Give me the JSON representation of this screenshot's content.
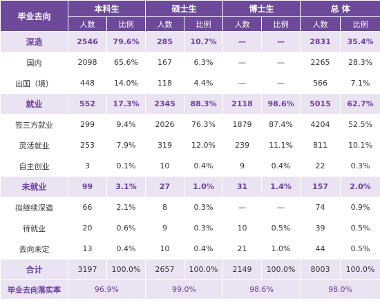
{
  "header": {
    "corner": "毕业去向",
    "groups": [
      "本科生",
      "硕士生",
      "博士生",
      "总 体"
    ],
    "sub": [
      "人数",
      "比例"
    ]
  },
  "rows": [
    {
      "label": "深造",
      "type": "sec",
      "cells": [
        "2546",
        "79.6%",
        "285",
        "10.7%",
        "—",
        "—",
        "2831",
        "35.4%"
      ]
    },
    {
      "label": "国内",
      "type": "sub",
      "cells": [
        "2098",
        "65.6%",
        "167",
        "6.3%",
        "—",
        "—",
        "2265",
        "28.3%"
      ]
    },
    {
      "label": "出国（境）",
      "type": "sub",
      "cells": [
        "448",
        "14.0%",
        "118",
        "4.4%",
        "—",
        "—",
        "566",
        "7.1%"
      ]
    },
    {
      "label": "就业",
      "type": "sec",
      "cells": [
        "552",
        "17.3%",
        "2345",
        "88.3%",
        "2118",
        "98.6%",
        "5015",
        "62.7%"
      ]
    },
    {
      "label": "签三方就业",
      "type": "sub",
      "cells": [
        "299",
        "9.4%",
        "2026",
        "76.3%",
        "1879",
        "87.4%",
        "4204",
        "52.5%"
      ]
    },
    {
      "label": "灵活就业",
      "type": "sub",
      "cells": [
        "253",
        "7.9%",
        "319",
        "12.0%",
        "239",
        "11.1%",
        "811",
        "10.1%"
      ]
    },
    {
      "label": "自主创业",
      "type": "sub",
      "cells": [
        "3",
        "0.1%",
        "10",
        "0.4%",
        "9",
        "0.4%",
        "22",
        "0.3%"
      ]
    },
    {
      "label": "未就业",
      "type": "sec",
      "cells": [
        "99",
        "3.1%",
        "27",
        "1.0%",
        "31",
        "1.4%",
        "157",
        "2.0%"
      ]
    },
    {
      "label": "拟继续深造",
      "type": "sub",
      "cells": [
        "66",
        "2.1%",
        "8",
        "0.3%",
        "—",
        "—",
        "74",
        "0.9%"
      ]
    },
    {
      "label": "待就业",
      "type": "sub",
      "cells": [
        "20",
        "0.6%",
        "9",
        "0.3%",
        "10",
        "0.5%",
        "39",
        "0.5%"
      ]
    },
    {
      "label": "去向未定",
      "type": "sub",
      "cells": [
        "13",
        "0.4%",
        "10",
        "0.4%",
        "21",
        "1.0%",
        "44",
        "0.5%"
      ]
    },
    {
      "label": "合计",
      "type": "total",
      "cells": [
        "3197",
        "100.0%",
        "2657",
        "100.0%",
        "2149",
        "100.0%",
        "8003",
        "100.0%"
      ]
    }
  ],
  "rate": {
    "label": "毕业去向落实率",
    "values": [
      "96.9%",
      "99.0%",
      "98.6%",
      "98.0%"
    ]
  },
  "colors": {
    "header_bg": "#6c4a99",
    "section_bg": "#e9e3f2",
    "accent_text": "#6c3fa0"
  }
}
